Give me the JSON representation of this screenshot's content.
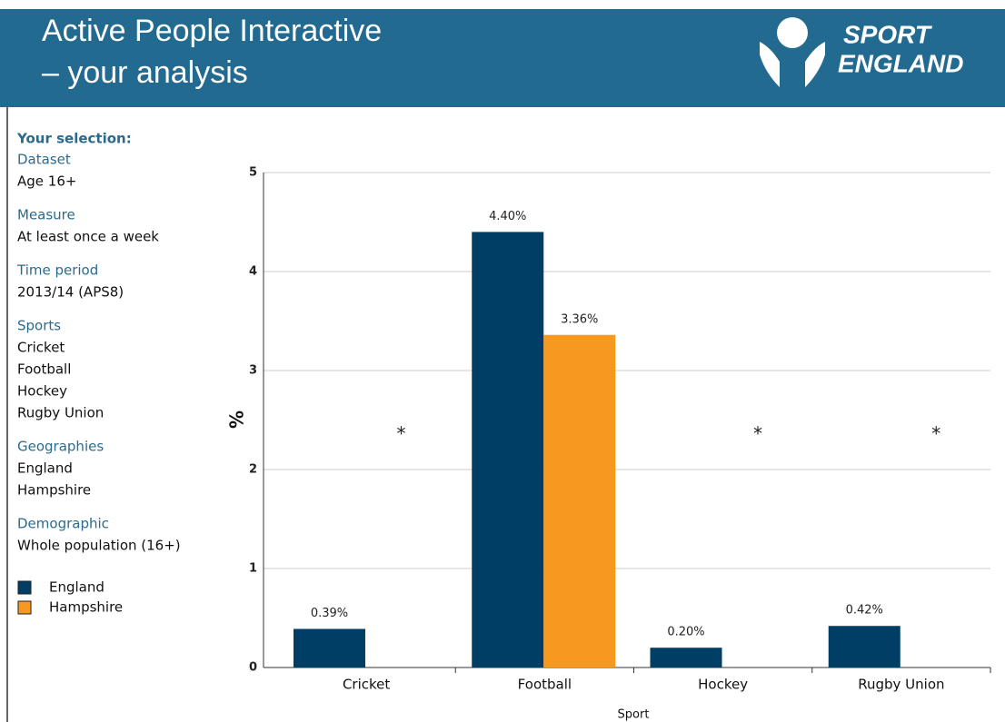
{
  "header": {
    "title_lines": [
      "Active People Interactive",
      "– your analysis"
    ],
    "logo_lines": [
      "SPORT",
      "ENGLAND"
    ]
  },
  "sidebar": {
    "heading": "Your selection:",
    "groups": [
      {
        "label": "Dataset",
        "items": [
          "Age 16+"
        ]
      },
      {
        "label": "Measure",
        "items": [
          "At least once a week"
        ]
      },
      {
        "label": "Time period",
        "items": [
          "2013/14 (APS8)"
        ]
      },
      {
        "label": "Sports",
        "items": [
          "Cricket",
          "Football",
          "Hockey",
          "Rugby Union"
        ]
      },
      {
        "label": "Geographies",
        "items": [
          "England",
          "Hampshire"
        ]
      },
      {
        "label": "Demographic",
        "items": [
          "Whole population (16+)"
        ]
      }
    ]
  },
  "chart_data": {
    "type": "bar",
    "x_label": "Sport",
    "y_label": "%",
    "categories": [
      "Cricket",
      "Football",
      "Hockey",
      "Rugby Union"
    ],
    "series": [
      {
        "name": "England",
        "color": "#003e66",
        "values": [
          0.39,
          4.4,
          0.2,
          0.42
        ],
        "value_labels": [
          "0.39%",
          "4.40%",
          "0.20%",
          "0.42%"
        ]
      },
      {
        "name": "Hampshire",
        "color": "#f7981f",
        "values": [
          null,
          3.36,
          null,
          null
        ],
        "value_labels": [
          null,
          "3.36%",
          null,
          null
        ]
      }
    ],
    "suppressed_marker": "*",
    "ylim": [
      0,
      5
    ],
    "yticks": [
      0,
      1,
      2,
      3,
      4,
      5
    ],
    "grid": true
  }
}
